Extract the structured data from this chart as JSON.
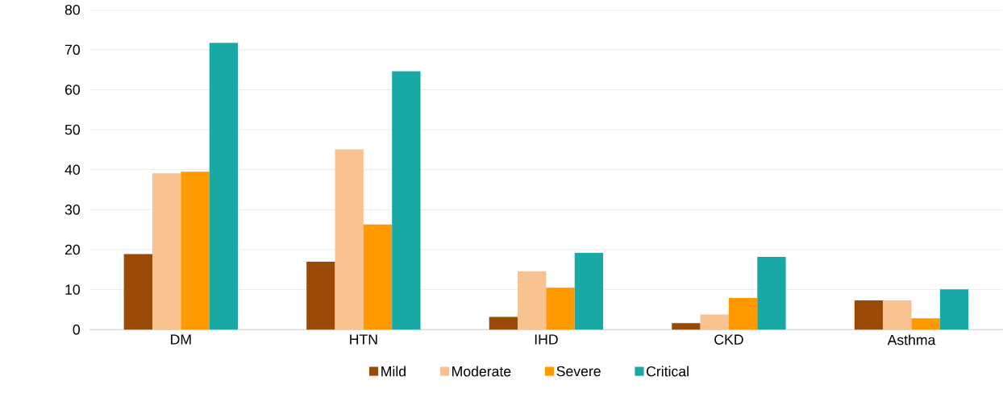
{
  "chart_data": {
    "type": "bar",
    "categories": [
      "DM",
      "HTN",
      "IHD",
      "CKD",
      "Asthma"
    ],
    "series": [
      {
        "name": "Mild",
        "color": "#994a06",
        "values": [
          18.9,
          17.0,
          3.2,
          1.6,
          7.3
        ]
      },
      {
        "name": "Moderate",
        "color": "#f8c291",
        "values": [
          39.1,
          45.1,
          14.6,
          3.8,
          7.3
        ]
      },
      {
        "name": "Severe",
        "color": "#ff9900",
        "values": [
          39.5,
          26.3,
          10.5,
          7.9,
          2.8
        ]
      },
      {
        "name": "Critical",
        "color": "#18a9a4",
        "values": [
          71.7,
          64.6,
          19.2,
          18.2,
          10.1
        ]
      }
    ],
    "ylim": [
      0,
      80
    ],
    "yticks": [
      0,
      10,
      20,
      30,
      40,
      50,
      60,
      70,
      80
    ],
    "grid": "y",
    "legend": "bottom"
  }
}
